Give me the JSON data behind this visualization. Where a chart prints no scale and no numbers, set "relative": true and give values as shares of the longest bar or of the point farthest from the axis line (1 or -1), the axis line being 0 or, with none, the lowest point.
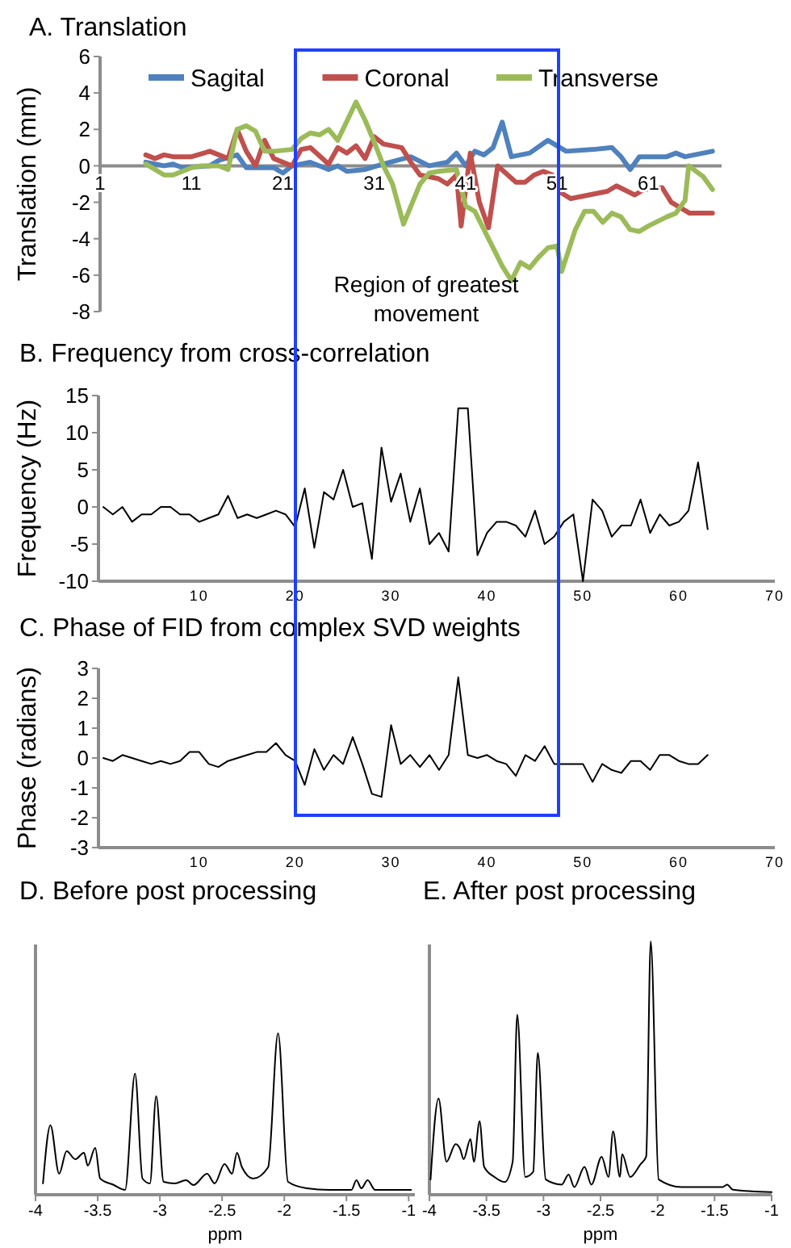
{
  "chart_data": [
    {
      "type": "line",
      "title": "A. Translation",
      "ylabel": "Translation (mm)",
      "xlim": [
        1,
        69
      ],
      "xticks": [
        1,
        11,
        21,
        31,
        41,
        51,
        61
      ],
      "ylim": [
        -8,
        6
      ],
      "yticks": [
        -8,
        -6,
        -4,
        -2,
        0,
        2,
        4,
        6
      ],
      "legend": "top",
      "annotations": [
        "Region of greatest movement"
      ],
      "series": [
        {
          "name": "Sagital",
          "color": "#4f81bd",
          "x": [
            6,
            8,
            9,
            10,
            13,
            14,
            16,
            17,
            20,
            21,
            22,
            24,
            26,
            27,
            28,
            30,
            32,
            35,
            37,
            39,
            40,
            41,
            42,
            43,
            44,
            45,
            46,
            48,
            50,
            52,
            55,
            57,
            58,
            59,
            60,
            63,
            64,
            65,
            67,
            68
          ],
          "values": [
            0.2,
            0,
            0.1,
            -0.1,
            0,
            0.3,
            0.6,
            -0.1,
            -0.1,
            -0.4,
            0,
            0.2,
            -0.2,
            0,
            -0.3,
            -0.2,
            0.1,
            0.5,
            0,
            0.2,
            0.7,
            0,
            0.8,
            0.6,
            1.0,
            2.4,
            0.5,
            0.7,
            1.4,
            0.8,
            0.9,
            1.0,
            0.5,
            -0.2,
            0.5,
            0.5,
            0.7,
            0.5,
            0.7,
            0.8
          ]
        },
        {
          "name": "Coronal",
          "color": "#c0504d",
          "x": [
            6,
            7,
            8,
            9,
            11,
            13,
            15,
            16,
            17,
            18,
            19,
            20,
            22,
            23,
            24,
            26,
            27,
            28,
            29,
            30,
            31,
            32,
            34,
            35,
            36,
            38,
            39,
            40,
            40.5,
            41.5,
            42.5,
            43.5,
            44.5,
            46.5,
            47.5,
            48.5,
            49.5,
            50.5,
            51.5,
            52.5,
            54.5,
            56.5,
            57.5,
            59.5,
            60.5,
            62.5,
            63.5,
            65.5,
            68
          ],
          "values": [
            0.6,
            0.4,
            0.6,
            0.5,
            0.5,
            0.8,
            0.4,
            2.0,
            0.8,
            0,
            1.4,
            0.4,
            0,
            0.9,
            1.0,
            0.1,
            1.0,
            0.7,
            1.1,
            0.4,
            1.6,
            1.2,
            1.0,
            0.2,
            -0.5,
            -0.7,
            -1.0,
            -0.5,
            -3.3,
            0.7,
            -2.0,
            -3.4,
            0,
            -0.9,
            -0.9,
            -0.5,
            -0.3,
            -0.5,
            -1.5,
            -1.8,
            -1.6,
            -1.4,
            -1.1,
            -1.6,
            -1.3,
            -1.2,
            -2.0,
            -2.6,
            -2.6
          ]
        },
        {
          "name": "Transverse",
          "color": "#9bbb59",
          "x": [
            6,
            7,
            8,
            9,
            11,
            12,
            14,
            15,
            16,
            17,
            18,
            19,
            20,
            22,
            23,
            24,
            25,
            26,
            27,
            29,
            30,
            31,
            32,
            33,
            34.2,
            36,
            37,
            38,
            40,
            41,
            42,
            43,
            45,
            46,
            47,
            48,
            49,
            50,
            51,
            51.5,
            53,
            54,
            55,
            56,
            57,
            58,
            59,
            60,
            61,
            63,
            64,
            65,
            65.4,
            67,
            68
          ],
          "values": [
            0.1,
            -0.2,
            -0.5,
            -0.5,
            -0.1,
            0,
            0,
            -0.2,
            2.0,
            2.2,
            1.9,
            0.8,
            0.8,
            0.9,
            1.5,
            1.8,
            1.7,
            2.0,
            1.4,
            3.5,
            2.5,
            1.3,
            0,
            -1.0,
            -3.2,
            -1.0,
            -0.4,
            -0.3,
            -0.2,
            -2.2,
            -2.5,
            -3.5,
            -5.5,
            -6.3,
            -5.3,
            -5.6,
            -5.0,
            -4.5,
            -4.4,
            -5.8,
            -3.5,
            -2.5,
            -2.5,
            -3.1,
            -2.6,
            -2.8,
            -3.5,
            -3.6,
            -3.3,
            -2.8,
            -2.6,
            -1.9,
            0,
            -0.6,
            -1.3
          ]
        }
      ]
    },
    {
      "type": "line",
      "title": "B. Frequency from cross-correlation",
      "ylabel": "Frequency (Hz)",
      "xlim": [
        -0.5,
        70
      ],
      "xticks": [
        10,
        20,
        30,
        40,
        50,
        60,
        70
      ],
      "ylim": [
        -10,
        15
      ],
      "yticks": [
        -10,
        -5,
        0,
        5,
        10,
        15
      ],
      "series": [
        {
          "color": "#000000",
          "x": [
            0,
            1,
            2,
            3,
            4,
            5,
            6,
            7,
            8,
            9,
            10,
            11,
            12,
            13,
            14,
            15,
            16,
            17,
            18,
            19,
            20,
            21,
            22,
            23,
            24,
            25,
            26,
            27,
            28,
            29,
            30,
            31,
            32,
            33,
            34,
            35,
            36,
            37,
            38,
            39,
            40,
            41,
            42,
            43,
            44,
            45,
            46,
            47,
            48,
            49,
            50,
            51,
            52,
            53,
            54,
            55,
            56,
            57,
            58,
            59,
            60,
            61,
            62,
            63
          ],
          "values": [
            0,
            -1,
            0,
            -2,
            -1,
            -1,
            0,
            0,
            -1,
            -1,
            -2,
            -1.5,
            -1,
            1.5,
            -1.5,
            -1,
            -1.5,
            -1,
            -0.5,
            -1,
            -2.7,
            2.5,
            -5.5,
            2,
            1,
            5,
            0,
            0.5,
            -7,
            8,
            0.7,
            4.5,
            -2,
            2.5,
            -5,
            -3.5,
            -6,
            13.3,
            13.3,
            -6.5,
            -3.5,
            -2,
            -2,
            -2.5,
            -4,
            -0.5,
            -5,
            -4,
            -2,
            -1,
            -10,
            1,
            -0.5,
            -4,
            -2.5,
            -2.5,
            1,
            -3.5,
            -1,
            -2.5,
            -2,
            -0.5,
            6,
            -3
          ]
        }
      ]
    },
    {
      "type": "line",
      "title": "C. Phase of FID from complex SVD weights",
      "ylabel": "Phase (radians)",
      "xlim": [
        -0.5,
        70
      ],
      "xticks": [
        10,
        20,
        30,
        40,
        50,
        60,
        70
      ],
      "ylim": [
        -3,
        3
      ],
      "yticks": [
        -3,
        -2,
        -1,
        0,
        1,
        2,
        3
      ],
      "series": [
        {
          "color": "#000000",
          "x": [
            0,
            1,
            2,
            3,
            4,
            5,
            6,
            7,
            8,
            9,
            10,
            11,
            12,
            13,
            14,
            15,
            16,
            17,
            18,
            19,
            20,
            21,
            22,
            23,
            24,
            25,
            26,
            27,
            28,
            29,
            30,
            31,
            32,
            33,
            34,
            35,
            36,
            37,
            38,
            39,
            40,
            41,
            42,
            43,
            44,
            45,
            46,
            47,
            48,
            49,
            50,
            51,
            52,
            53,
            54,
            55,
            56,
            57,
            58,
            59,
            60,
            61,
            62,
            63
          ],
          "values": [
            0,
            -0.1,
            0.1,
            0,
            -0.1,
            -0.2,
            -0.1,
            -0.2,
            -0.1,
            0.2,
            0.2,
            -0.2,
            -0.3,
            -0.1,
            0,
            0.1,
            0.2,
            0.2,
            0.5,
            0.1,
            -0.1,
            -0.9,
            0.3,
            -0.4,
            0.1,
            -0.2,
            0.7,
            -0.2,
            -1.2,
            -1.3,
            1.1,
            -0.2,
            0.1,
            -0.3,
            0.1,
            -0.4,
            0.1,
            2.7,
            0.1,
            0,
            0.1,
            -0.1,
            -0.2,
            -0.6,
            0.1,
            -0.1,
            0.4,
            -0.2,
            -0.2,
            -0.2,
            -0.2,
            -0.8,
            -0.2,
            -0.4,
            -0.5,
            -0.1,
            -0.1,
            -0.4,
            0.1,
            0.1,
            -0.1,
            -0.2,
            -0.2,
            0.1
          ]
        }
      ]
    },
    {
      "type": "line",
      "title": "D. Before post processing",
      "xlabel": "ppm",
      "relative": true,
      "tick_labels": "x",
      "xlim": [
        -4,
        -0.95
      ],
      "xticks": [
        -4,
        -3.5,
        -3,
        -2.5,
        -2,
        -1.5,
        -1
      ],
      "series": [
        {
          "color": "#000000",
          "x": [
            -3.94,
            -3.88,
            -3.81,
            -3.75,
            -3.68,
            -3.61,
            -3.58,
            -3.52,
            -3.48,
            -3.37,
            -3.28,
            -3.2,
            -3.14,
            -3.08,
            -3.03,
            -2.97,
            -2.88,
            -2.79,
            -2.73,
            -2.62,
            -2.56,
            -2.48,
            -2.42,
            -2.38,
            -2.34,
            -2.25,
            -2.13,
            -2.05,
            -1.97,
            -1.82,
            -1.64,
            -1.46,
            -1.42,
            -1.38,
            -1.33,
            -1.27,
            -0.98
          ],
          "values": [
            0.07,
            0.43,
            0.13,
            0.27,
            0.22,
            0.26,
            0.18,
            0.29,
            0.1,
            0.06,
            0.03,
            0.75,
            0.1,
            0.07,
            0.61,
            0.08,
            0.07,
            0.09,
            0.06,
            0.13,
            0.07,
            0.19,
            0.13,
            0.26,
            0.17,
            0.1,
            0.17,
            1,
            0.08,
            0.04,
            0.03,
            0.03,
            0.09,
            0.04,
            0.09,
            0.03,
            0.03
          ]
        }
      ]
    },
    {
      "type": "line",
      "title": "E. After post processing",
      "xlabel": "ppm",
      "relative": true,
      "tick_labels": "x",
      "xlim": [
        -4,
        -1
      ],
      "xticks": [
        -4,
        -3.5,
        -3,
        -2.5,
        -2,
        -1.5,
        -1
      ],
      "series": [
        {
          "color": "#000000",
          "x": [
            -3.99,
            -3.92,
            -3.85,
            -3.77,
            -3.73,
            -3.7,
            -3.64,
            -3.61,
            -3.56,
            -3.52,
            -3.43,
            -3.34,
            -3.27,
            -3.23,
            -3.16,
            -3.09,
            -3.05,
            -2.98,
            -2.84,
            -2.78,
            -2.73,
            -2.64,
            -2.58,
            -2.49,
            -2.43,
            -2.39,
            -2.33,
            -2.31,
            -2.24,
            -2.15,
            -2.1,
            -2.06,
            -1.99,
            -1.79,
            -1.43,
            -1.39,
            -1.34,
            -1
          ],
          "values": [
            0.06,
            0.38,
            0.13,
            0.2,
            0.18,
            0.14,
            0.22,
            0.13,
            0.29,
            0.11,
            0.07,
            0.05,
            0.13,
            0.71,
            0.07,
            0.09,
            0.56,
            0.06,
            0.04,
            0.08,
            0.03,
            0.11,
            0.04,
            0.15,
            0.07,
            0.25,
            0.07,
            0.16,
            0.07,
            0.12,
            0.15,
            1,
            0.06,
            0.03,
            0.03,
            0.04,
            0.02,
            0.01
          ]
        }
      ]
    }
  ]
}
